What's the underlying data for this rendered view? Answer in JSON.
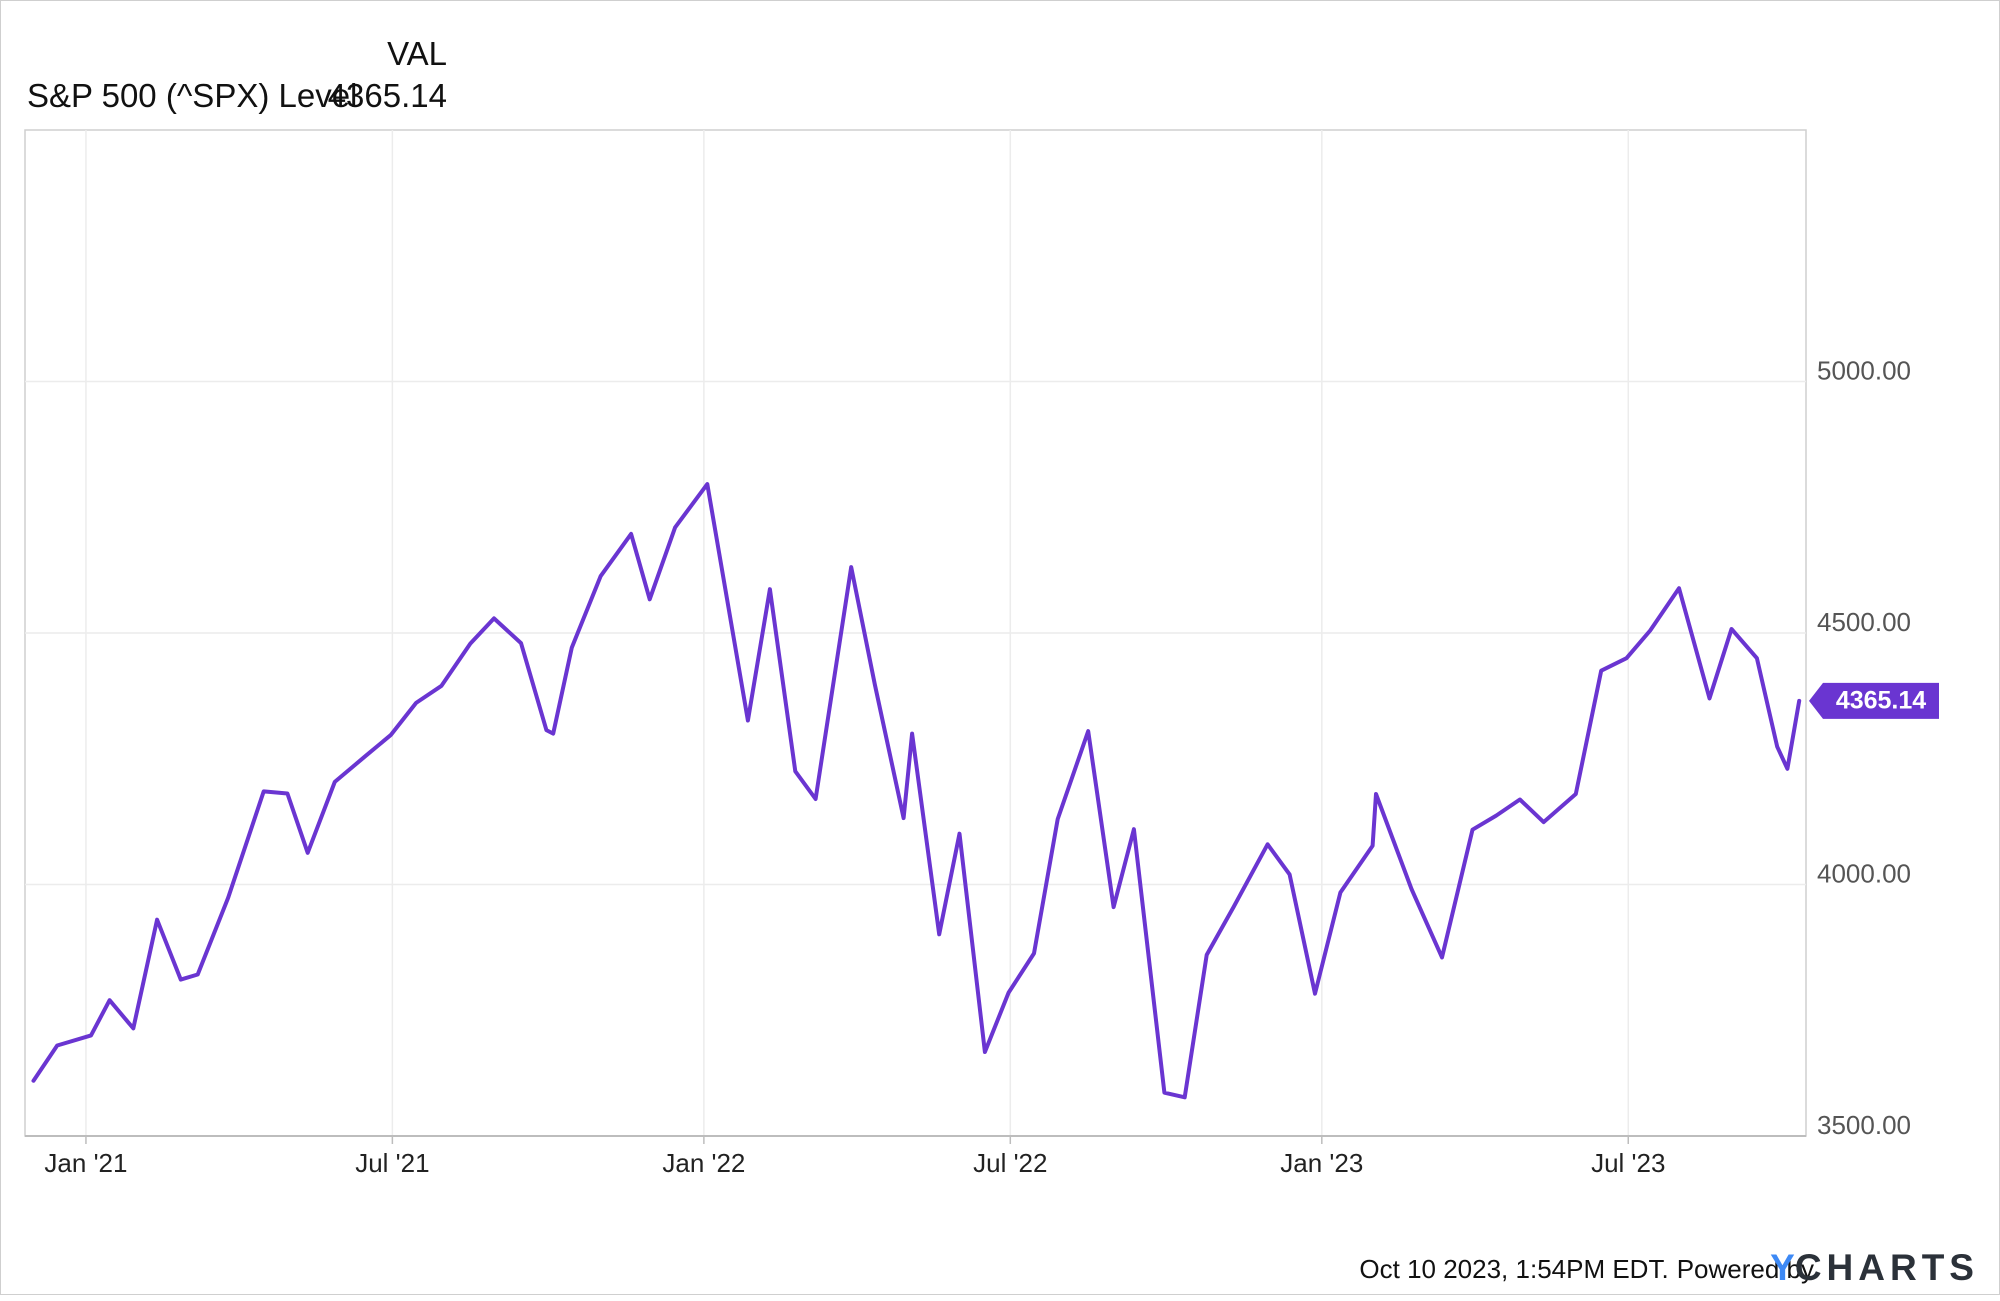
{
  "header": {
    "column_label": "VAL",
    "series_label": "S&P 500 (^SPX) Level",
    "series_value": "4365.14"
  },
  "chart_data": {
    "type": "line",
    "title": "",
    "xlabel": "",
    "ylabel": "",
    "x_ticks": [
      "Jan '21",
      "Jul '21",
      "Jan '22",
      "Jul '22",
      "Jan '23",
      "Jul '23"
    ],
    "y_ticks": [
      "3500.00",
      "4000.00",
      "4500.00",
      "5000.00"
    ],
    "ylim": [
      3500,
      5500
    ],
    "grid": true,
    "y_axis_side": "right",
    "series": [
      {
        "name": "S&P 500 (^SPX) Level",
        "color": "#6a35d1",
        "last_value_label": "4365.14",
        "x": [
          "2020-12-01",
          "2020-12-15",
          "2021-01-04",
          "2021-01-15",
          "2021-01-29",
          "2021-02-12",
          "2021-02-26",
          "2021-03-08",
          "2021-03-26",
          "2021-04-16",
          "2021-04-30",
          "2021-05-12",
          "2021-05-28",
          "2021-06-15",
          "2021-06-30",
          "2021-07-15",
          "2021-07-30",
          "2021-08-16",
          "2021-08-30",
          "2021-09-15",
          "2021-09-30",
          "2021-10-04",
          "2021-10-15",
          "2021-11-01",
          "2021-11-19",
          "2021-11-30",
          "2021-12-15",
          "2022-01-03",
          "2022-01-27",
          "2022-02-09",
          "2022-02-24",
          "2022-03-08",
          "2022-03-29",
          "2022-04-12",
          "2022-04-29",
          "2022-05-04",
          "2022-05-20",
          "2022-06-01",
          "2022-06-16",
          "2022-06-30",
          "2022-07-15",
          "2022-07-29",
          "2022-08-16",
          "2022-08-31",
          "2022-09-12",
          "2022-09-30",
          "2022-10-12",
          "2022-10-25",
          "2022-11-10",
          "2022-11-30",
          "2022-12-13",
          "2022-12-28",
          "2023-01-12",
          "2023-01-31",
          "2023-02-02",
          "2023-02-23",
          "2023-03-13",
          "2023-03-31",
          "2023-04-14",
          "2023-04-28",
          "2023-05-12",
          "2023-05-31",
          "2023-06-15",
          "2023-06-30",
          "2023-07-14",
          "2023-07-31",
          "2023-08-18",
          "2023-08-31",
          "2023-09-15",
          "2023-09-27",
          "2023-10-03",
          "2023-10-10"
        ],
        "values": [
          3610,
          3680,
          3700,
          3770,
          3714,
          3930,
          3811,
          3821,
          3974,
          4185,
          4181,
          4063,
          4204,
          4255,
          4297,
          4361,
          4395,
          4479,
          4529,
          4480,
          4307,
          4300,
          4471,
          4613,
          4697,
          4567,
          4710,
          4796,
          4326,
          4587,
          4225,
          4170,
          4631,
          4397,
          4132,
          4300,
          3901,
          4101,
          3667,
          3785,
          3863,
          4130,
          4305,
          3955,
          4110,
          3586,
          3577,
          3860,
          3956,
          4080,
          4020,
          3783,
          3984,
          4077,
          4180,
          3991,
          3855,
          4109,
          4137,
          4169,
          4124,
          4180,
          4425,
          4450,
          4505,
          4589,
          4370,
          4508,
          4450,
          4274,
          4230,
          4365
        ]
      }
    ]
  },
  "footer": {
    "timestamp": "Oct 10 2023, 1:54PM EDT.",
    "powered_by": "Powered by",
    "brand_y": "Y",
    "brand_rest": "CHARTS"
  }
}
